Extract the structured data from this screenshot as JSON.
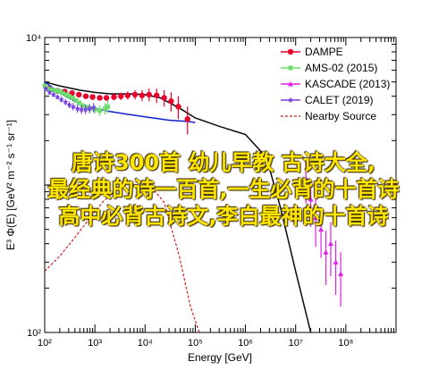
{
  "overlay_lines": [
    "唐诗300首 幼儿早教 古诗大全,",
    "最经典的诗一百首,一生必背的十首诗",
    "高中必背古诗文,李白最神的十首诗"
  ],
  "chart_data": {
    "type": "scatter",
    "title": "",
    "xlabel": "Energy [GeV]",
    "ylabel": "E³ Φ(E) [GeV² m⁻² s⁻¹ sr⁻¹]",
    "xscale": "log",
    "yscale": "log",
    "xlim": [
      100,
      1000000000
    ],
    "ylim": [
      100,
      10000
    ],
    "x_ticks": [
      100,
      1000,
      10000,
      100000,
      1000000,
      10000000,
      100000000
    ],
    "x_tick_labels": [
      "10²",
      "10³",
      "10⁴",
      "10⁵",
      "10⁶",
      "10⁷",
      "10⁸"
    ],
    "y_ticks": [
      100,
      10000
    ],
    "y_tick_labels": [
      "10²",
      "10⁴"
    ],
    "legend": {
      "position": "top-right"
    },
    "series": [
      {
        "name": "DAMPE",
        "kind": "points",
        "color": "#e8002a",
        "points": [
          [
            120,
            4500
          ],
          [
            180,
            4350
          ],
          [
            250,
            4300
          ],
          [
            350,
            4200
          ],
          [
            480,
            4100
          ],
          [
            660,
            4000
          ],
          [
            900,
            3950
          ],
          [
            1250,
            3900
          ],
          [
            1700,
            3900
          ],
          [
            2400,
            3950
          ],
          [
            3300,
            4000
          ],
          [
            4500,
            4050
          ],
          [
            6300,
            4100
          ],
          [
            8700,
            4050
          ],
          [
            12000,
            4100
          ],
          [
            17000,
            4050
          ],
          [
            24000,
            3900
          ],
          [
            33000,
            3700
          ],
          [
            46000,
            3400
          ],
          [
            70000,
            2800
          ]
        ],
        "yerr": [
          150,
          150,
          150,
          150,
          150,
          150,
          150,
          150,
          180,
          200,
          230,
          260,
          300,
          350,
          400,
          450,
          500,
          550,
          600,
          600
        ]
      },
      {
        "name": "AMS-02 (2015)",
        "kind": "points",
        "color": "#6ddc6d",
        "points": [
          [
            100,
            4700
          ],
          [
            115,
            4500
          ],
          [
            130,
            4450
          ],
          [
            150,
            4400
          ],
          [
            175,
            4350
          ],
          [
            200,
            4300
          ],
          [
            230,
            4200
          ],
          [
            270,
            4100
          ],
          [
            310,
            4000
          ],
          [
            360,
            3900
          ],
          [
            420,
            3750
          ],
          [
            490,
            3600
          ],
          [
            570,
            3450
          ],
          [
            680,
            3350
          ],
          [
            800,
            3300
          ],
          [
            1000,
            3250
          ],
          [
            1250,
            3200
          ],
          [
            1600,
            3300
          ],
          [
            1800,
            3400
          ]
        ],
        "yerr": [
          100,
          100,
          100,
          100,
          100,
          100,
          100,
          100,
          120,
          120,
          130,
          140,
          150,
          170,
          190,
          220,
          260,
          300,
          350
        ]
      },
      {
        "name": "KASCADE (2013)",
        "kind": "points",
        "color": "#e020e8",
        "points": [
          [
            16000000,
            1100
          ],
          [
            20000000,
            800
          ],
          [
            25000000,
            600
          ],
          [
            32000000,
            500
          ],
          [
            40000000,
            350
          ],
          [
            50000000,
            400
          ],
          [
            63000000,
            300
          ],
          [
            79000000,
            250
          ]
        ],
        "yerr": [
          350,
          280,
          220,
          180,
          140,
          160,
          120,
          100
        ]
      },
      {
        "name": "CALET (2019)",
        "kind": "points",
        "color": "#7a3fe8",
        "points": [
          [
            105,
            4500
          ],
          [
            125,
            4250
          ],
          [
            150,
            4100
          ],
          [
            180,
            3950
          ],
          [
            215,
            3800
          ],
          [
            260,
            3650
          ],
          [
            310,
            3500
          ],
          [
            370,
            3400
          ],
          [
            450,
            3300
          ],
          [
            540,
            3250
          ],
          [
            650,
            3250
          ],
          [
            780,
            3300
          ],
          [
            940,
            3350
          ]
        ],
        "yerr": [
          150,
          150,
          150,
          150,
          160,
          170,
          180,
          190,
          200,
          210,
          220,
          230,
          240
        ]
      },
      {
        "name": "",
        "kind": "curve",
        "color": "#0a0a0a",
        "points": [
          [
            100,
            5000
          ],
          [
            200,
            4700
          ],
          [
            500,
            4400
          ],
          [
            1000,
            4250
          ],
          [
            2000,
            4150
          ],
          [
            5000,
            4150
          ],
          [
            10000,
            4100
          ],
          [
            20000,
            3900
          ],
          [
            50000,
            3300
          ],
          [
            100000,
            2850
          ],
          [
            300000,
            2500
          ],
          [
            1000000,
            2200
          ],
          [
            2000000,
            1700
          ],
          [
            3000000,
            1300
          ],
          [
            5000000,
            700
          ],
          [
            10000000,
            260
          ],
          [
            20000000,
            100
          ]
        ]
      },
      {
        "name": "",
        "kind": "curve",
        "color": "#1020d0",
        "points": [
          [
            100,
            5000
          ],
          [
            200,
            4200
          ],
          [
            500,
            3550
          ],
          [
            1000,
            3300
          ],
          [
            2000,
            3150
          ],
          [
            5000,
            3000
          ],
          [
            10000,
            2900
          ],
          [
            30000,
            2750
          ],
          [
            70000,
            2700
          ],
          [
            100000,
            2650
          ]
        ]
      },
      {
        "name": "Nearby Source",
        "kind": "curve",
        "dashed": true,
        "color": "#d02020",
        "points": [
          [
            100,
            260
          ],
          [
            200,
            330
          ],
          [
            400,
            440
          ],
          [
            800,
            600
          ],
          [
            1500,
            780
          ],
          [
            3000,
            950
          ],
          [
            6000,
            1060
          ],
          [
            12000,
            1020
          ],
          [
            24000,
            760
          ],
          [
            48000,
            330
          ],
          [
            80000,
            150
          ],
          [
            120000,
            100
          ]
        ]
      }
    ]
  }
}
